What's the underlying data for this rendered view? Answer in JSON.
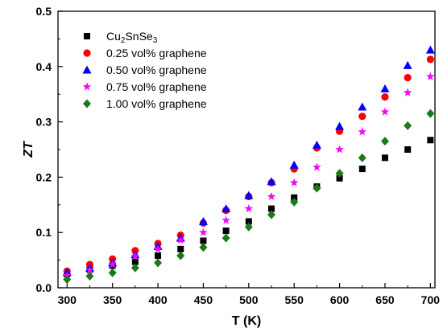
{
  "chart_data": {
    "type": "scatter",
    "xlabel": "T (K)",
    "ylabel": "ZT",
    "xlim": [
      290,
      705
    ],
    "ylim": [
      0,
      0.5
    ],
    "xticks": [
      "300",
      "350",
      "400",
      "450",
      "500",
      "550",
      "600",
      "650",
      "700"
    ],
    "yticks": [
      "0.0",
      "0.1",
      "0.2",
      "0.3",
      "0.4",
      "0.5"
    ],
    "legend_position": "top-left",
    "grid": false,
    "x": [
      300,
      325,
      350,
      375,
      400,
      425,
      450,
      475,
      500,
      525,
      550,
      575,
      600,
      625,
      650,
      675,
      700
    ],
    "series": [
      {
        "name_parts": [
          "Cu",
          "2",
          "SnSe",
          "3"
        ],
        "marker": "square",
        "color": "#000000",
        "values": [
          0.025,
          0.033,
          0.04,
          0.047,
          0.058,
          0.07,
          0.085,
          0.103,
          0.12,
          0.143,
          0.163,
          0.183,
          0.198,
          0.215,
          0.235,
          0.25,
          0.267
        ]
      },
      {
        "name": "0.25 vol% graphene",
        "marker": "circle",
        "color": "#ff0000",
        "values": [
          0.03,
          0.042,
          0.052,
          0.067,
          0.08,
          0.095,
          0.117,
          0.14,
          0.165,
          0.19,
          0.215,
          0.253,
          0.283,
          0.31,
          0.345,
          0.38,
          0.413
        ]
      },
      {
        "name": "0.50 vol% graphene",
        "marker": "triangle",
        "color": "#0000ff",
        "values": [
          0.028,
          0.036,
          0.045,
          0.06,
          0.075,
          0.09,
          0.12,
          0.143,
          0.167,
          0.192,
          0.222,
          0.258,
          0.292,
          0.327,
          0.36,
          0.402,
          0.43
        ]
      },
      {
        "name": "0.75 vol% graphene",
        "marker": "star",
        "color": "#ff00ff",
        "values": [
          0.022,
          0.032,
          0.042,
          0.057,
          0.07,
          0.086,
          0.1,
          0.122,
          0.143,
          0.165,
          0.19,
          0.218,
          0.25,
          0.282,
          0.318,
          0.353,
          0.382
        ]
      },
      {
        "name": "1.00 vol% graphene",
        "marker": "diamond",
        "color": "#1a7a1a",
        "values": [
          0.015,
          0.021,
          0.027,
          0.036,
          0.045,
          0.058,
          0.073,
          0.09,
          0.11,
          0.132,
          0.155,
          0.18,
          0.207,
          0.235,
          0.265,
          0.293,
          0.315
        ]
      }
    ]
  }
}
